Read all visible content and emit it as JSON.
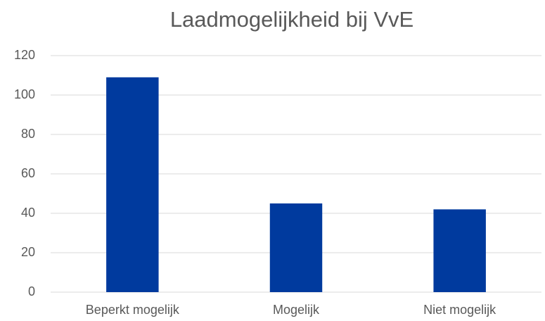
{
  "chart_data": {
    "type": "bar",
    "title": "Laadmogelijkheid bij VvE",
    "categories": [
      "Beperkt mogelijk",
      "Mogelijk",
      "Niet mogelijk"
    ],
    "values": [
      109,
      45,
      42
    ],
    "color": "#003a9e",
    "ylim": [
      0,
      120
    ],
    "yticks": [
      0,
      20,
      40,
      60,
      80,
      100,
      120
    ],
    "grid": true
  }
}
